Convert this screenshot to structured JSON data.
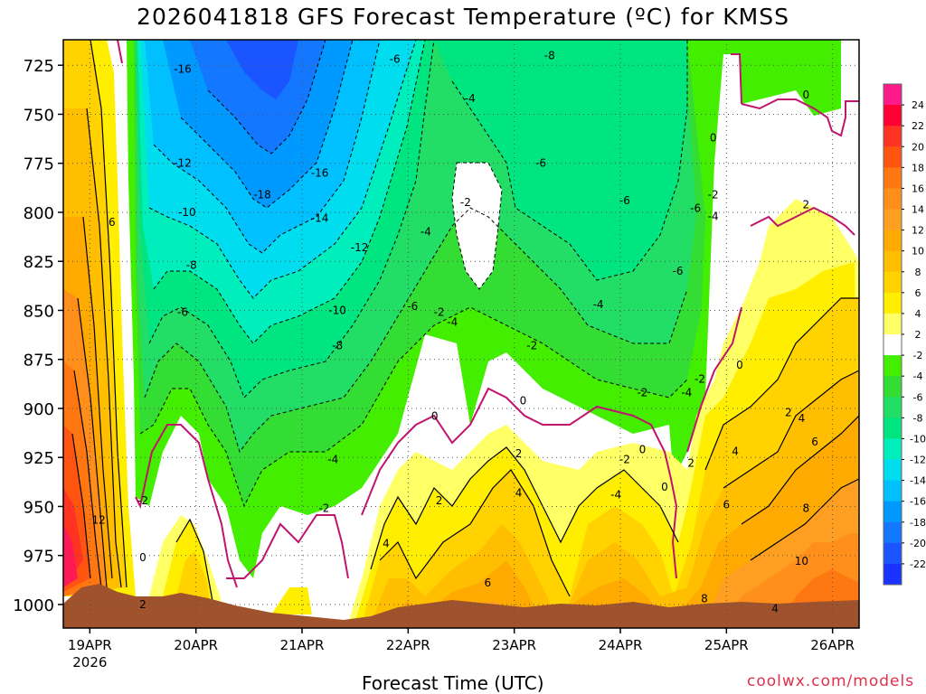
{
  "chart_data": {
    "type": "heatmap",
    "title": "2026041818 GFS Forecast Temperature (ºC) for KMSS",
    "xlabel": "Forecast Time (UTC)",
    "ylabel": "",
    "y_ticks": [
      "725",
      "750",
      "775",
      "800",
      "825",
      "850",
      "875",
      "900",
      "925",
      "950",
      "975",
      "1000"
    ],
    "y_tick_values": [
      725,
      750,
      775,
      800,
      825,
      850,
      875,
      900,
      925,
      950,
      975,
      1000
    ],
    "ylim": [
      712,
      1012
    ],
    "x_ticks": [
      "19APR",
      "20APR",
      "21APR",
      "22APR",
      "23APR",
      "24APR",
      "25APR",
      "26APR"
    ],
    "x_tick_values": [
      6,
      30,
      54,
      78,
      102,
      126,
      150,
      174
    ],
    "x_year": "2026",
    "xlim": [
      0,
      180
    ],
    "colorbar": {
      "labels": [
        "24",
        "22",
        "20",
        "18",
        "16",
        "14",
        "12",
        "10",
        "8",
        "6",
        "4",
        "2",
        "-2",
        "-4",
        "-6",
        "-8",
        "-10",
        "-12",
        "-14",
        "-16",
        "-18",
        "-20",
        "-22"
      ],
      "colors": [
        "#ff1a8c",
        "#ff0033",
        "#ff3322",
        "#ff5511",
        "#ff7711",
        "#ff8f1a",
        "#ff9f22",
        "#ffaa00",
        "#ffbe00",
        "#ffd200",
        "#ffee00",
        "#ffff66",
        "#ffffff",
        "#44ee00",
        "#33dd33",
        "#22dd66",
        "#00e57f",
        "#00eebb",
        "#00ddee",
        "#00c0ff",
        "#0099ff",
        "#1477ff",
        "#1a55ff",
        "#1a33ff"
      ]
    },
    "contour_labels": [
      {
        "t": 11,
        "p": 805,
        "v": "6"
      },
      {
        "t": 8,
        "p": 957,
        "v": "12"
      },
      {
        "t": 18,
        "p": 947,
        "v": "-2"
      },
      {
        "t": 18,
        "p": 976,
        "v": "0"
      },
      {
        "t": 18,
        "p": 1000,
        "v": "2"
      },
      {
        "t": 27,
        "p": 727,
        "v": "-16"
      },
      {
        "t": 27,
        "p": 775,
        "v": "-12"
      },
      {
        "t": 28,
        "p": 800,
        "v": "-10"
      },
      {
        "t": 29,
        "p": 827,
        "v": "-8"
      },
      {
        "t": 27,
        "p": 851,
        "v": "-6"
      },
      {
        "t": 45,
        "p": 791,
        "v": "-18"
      },
      {
        "t": 58,
        "p": 780,
        "v": "-16"
      },
      {
        "t": 58,
        "p": 803,
        "v": "-14"
      },
      {
        "t": 67,
        "p": 818,
        "v": "-12"
      },
      {
        "t": 62,
        "p": 850,
        "v": "-10"
      },
      {
        "t": 62,
        "p": 868,
        "v": "-8"
      },
      {
        "t": 61,
        "p": 926,
        "v": "-4"
      },
      {
        "t": 59,
        "p": 951,
        "v": "-2"
      },
      {
        "t": 75,
        "p": 722,
        "v": "-6"
      },
      {
        "t": 92,
        "p": 742,
        "v": "-4"
      },
      {
        "t": 79,
        "p": 848,
        "v": "-6"
      },
      {
        "t": 85,
        "p": 851,
        "v": "-2"
      },
      {
        "t": 88,
        "p": 856,
        "v": "-4"
      },
      {
        "t": 82,
        "p": 810,
        "v": "-4"
      },
      {
        "t": 91,
        "p": 795,
        "v": "-2"
      },
      {
        "t": 84,
        "p": 904,
        "v": "0"
      },
      {
        "t": 85,
        "p": 947,
        "v": "2"
      },
      {
        "t": 73,
        "p": 969,
        "v": "4"
      },
      {
        "t": 106,
        "p": 868,
        "v": "-2"
      },
      {
        "t": 104,
        "p": 896,
        "v": "0"
      },
      {
        "t": 103,
        "p": 923,
        "v": "2"
      },
      {
        "t": 103,
        "p": 943,
        "v": "4"
      },
      {
        "t": 96,
        "p": 989,
        "v": "6"
      },
      {
        "t": 110,
        "p": 720,
        "v": "-8"
      },
      {
        "t": 108,
        "p": 775,
        "v": "-6"
      },
      {
        "t": 127,
        "p": 794,
        "v": "-6"
      },
      {
        "t": 121,
        "p": 847,
        "v": "-4"
      },
      {
        "t": 131,
        "p": 892,
        "v": "-2"
      },
      {
        "t": 131,
        "p": 921,
        "v": "0"
      },
      {
        "t": 127,
        "p": 926,
        "v": "-2"
      },
      {
        "t": 125,
        "p": 944,
        "v": "-4"
      },
      {
        "t": 139,
        "p": 830,
        "v": "-6"
      },
      {
        "t": 143,
        "p": 798,
        "v": "-6"
      },
      {
        "t": 147,
        "p": 791,
        "v": "-2"
      },
      {
        "t": 147,
        "p": 802,
        "v": "-4"
      },
      {
        "t": 147,
        "p": 762,
        "v": "0"
      },
      {
        "t": 141,
        "p": 892,
        "v": "-4"
      },
      {
        "t": 144,
        "p": 885,
        "v": "-2"
      },
      {
        "t": 136,
        "p": 940,
        "v": "0"
      },
      {
        "t": 142,
        "p": 928,
        "v": "2"
      },
      {
        "t": 152,
        "p": 922,
        "v": "4"
      },
      {
        "t": 150,
        "p": 949,
        "v": "6"
      },
      {
        "t": 145,
        "p": 997,
        "v": "8"
      },
      {
        "t": 168,
        "p": 740,
        "v": "0"
      },
      {
        "t": 168,
        "p": 796,
        "v": "2"
      },
      {
        "t": 153,
        "p": 878,
        "v": "0"
      },
      {
        "t": 164,
        "p": 902,
        "v": "2"
      },
      {
        "t": 167,
        "p": 905,
        "v": "4"
      },
      {
        "t": 170,
        "p": 917,
        "v": "6"
      },
      {
        "t": 168,
        "p": 951,
        "v": "8"
      },
      {
        "t": 167,
        "p": 978,
        "v": "10"
      },
      {
        "t": 161,
        "p": 1002,
        "v": "4"
      }
    ]
  },
  "credit": "coolwx.com/models"
}
